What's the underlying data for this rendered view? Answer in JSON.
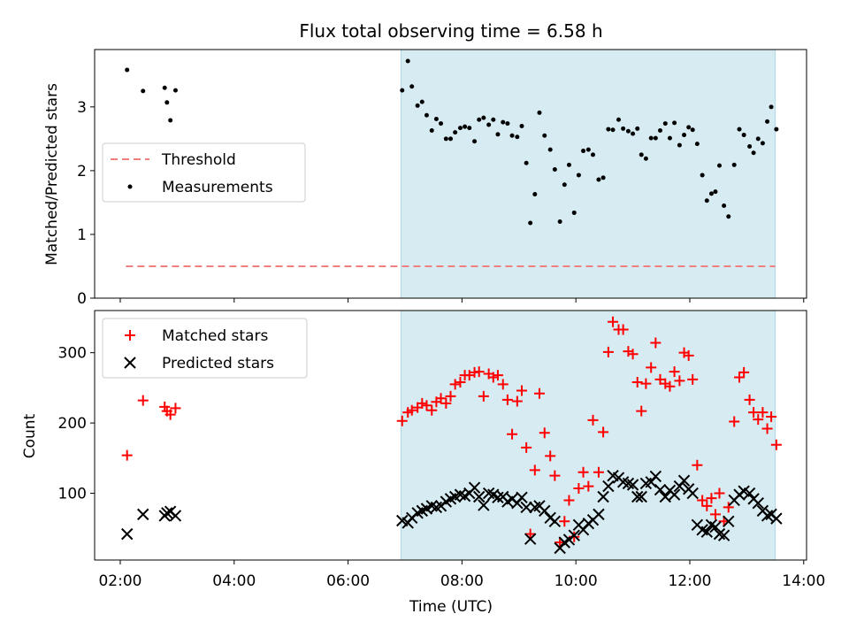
{
  "title": "Flux total observing time = 6.58 h",
  "colors": {
    "shade": "#add8e6",
    "threshold": "#f08080",
    "measurement": "#000000",
    "matched": "#ff0000",
    "predicted": "#000000"
  },
  "chart_data": [
    {
      "type": "scatter",
      "ylabel": "Matched/Predicted stars",
      "xlabel": "",
      "xlim_hours": [
        1.55,
        14.05
      ],
      "ylim": [
        0,
        3.9
      ],
      "yticks": [
        {
          "value": 0,
          "label": "0"
        },
        {
          "value": 1,
          "label": "1"
        },
        {
          "value": 2,
          "label": "2"
        },
        {
          "value": 3,
          "label": "3"
        }
      ],
      "shaded_span_hours": [
        6.93,
        13.5
      ],
      "threshold": {
        "name": "Threshold",
        "value": 0.5,
        "x_range_hours": [
          2.1,
          13.5
        ]
      },
      "legend_location": "center-left",
      "series": [
        {
          "name": "Measurements",
          "marker": "dot",
          "points": [
            [
              2.12,
              3.58
            ],
            [
              2.4,
              3.25
            ],
            [
              2.78,
              3.3
            ],
            [
              2.82,
              3.07
            ],
            [
              2.88,
              2.79
            ],
            [
              2.97,
              3.26
            ],
            [
              6.95,
              3.26
            ],
            [
              7.05,
              3.72
            ],
            [
              7.12,
              3.32
            ],
            [
              7.22,
              3.02
            ],
            [
              7.3,
              3.08
            ],
            [
              7.38,
              2.87
            ],
            [
              7.47,
              2.63
            ],
            [
              7.55,
              2.81
            ],
            [
              7.63,
              2.74
            ],
            [
              7.72,
              2.5
            ],
            [
              7.8,
              2.5
            ],
            [
              7.88,
              2.6
            ],
            [
              7.97,
              2.67
            ],
            [
              8.05,
              2.69
            ],
            [
              8.13,
              2.67
            ],
            [
              8.22,
              2.46
            ],
            [
              8.3,
              2.8
            ],
            [
              8.38,
              2.83
            ],
            [
              8.47,
              2.72
            ],
            [
              8.55,
              2.8
            ],
            [
              8.63,
              2.57
            ],
            [
              8.72,
              2.76
            ],
            [
              8.8,
              2.74
            ],
            [
              8.88,
              2.55
            ],
            [
              8.97,
              2.53
            ],
            [
              9.05,
              2.7
            ],
            [
              9.13,
              2.12
            ],
            [
              9.2,
              1.18
            ],
            [
              9.28,
              1.63
            ],
            [
              9.36,
              2.91
            ],
            [
              9.45,
              2.55
            ],
            [
              9.55,
              2.33
            ],
            [
              9.63,
              2.02
            ],
            [
              9.72,
              1.2
            ],
            [
              9.8,
              1.78
            ],
            [
              9.88,
              2.09
            ],
            [
              9.97,
              1.34
            ],
            [
              10.05,
              1.93
            ],
            [
              10.13,
              2.31
            ],
            [
              10.22,
              2.33
            ],
            [
              10.3,
              2.25
            ],
            [
              10.4,
              1.86
            ],
            [
              10.48,
              1.89
            ],
            [
              10.57,
              2.65
            ],
            [
              10.65,
              2.64
            ],
            [
              10.75,
              2.8
            ],
            [
              10.83,
              2.66
            ],
            [
              10.92,
              2.62
            ],
            [
              11.0,
              2.58
            ],
            [
              11.08,
              2.66
            ],
            [
              11.15,
              2.25
            ],
            [
              11.23,
              2.19
            ],
            [
              11.32,
              2.51
            ],
            [
              11.4,
              2.51
            ],
            [
              11.48,
              2.63
            ],
            [
              11.57,
              2.74
            ],
            [
              11.65,
              2.51
            ],
            [
              11.73,
              2.75
            ],
            [
              11.82,
              2.4
            ],
            [
              11.9,
              2.56
            ],
            [
              11.98,
              2.68
            ],
            [
              12.05,
              2.64
            ],
            [
              12.13,
              2.42
            ],
            [
              12.22,
              1.93
            ],
            [
              12.3,
              1.53
            ],
            [
              12.38,
              1.64
            ],
            [
              12.45,
              1.67
            ],
            [
              12.52,
              2.08
            ],
            [
              12.6,
              1.45
            ],
            [
              12.68,
              1.28
            ],
            [
              12.78,
              2.09
            ],
            [
              12.87,
              2.65
            ],
            [
              12.95,
              2.56
            ],
            [
              13.05,
              2.38
            ],
            [
              13.12,
              2.28
            ],
            [
              13.2,
              2.5
            ],
            [
              13.28,
              2.43
            ],
            [
              13.36,
              2.77
            ],
            [
              13.43,
              3.0
            ],
            [
              13.52,
              2.65
            ]
          ]
        }
      ]
    },
    {
      "type": "scatter",
      "ylabel": "Count",
      "xlabel": "Time (UTC)",
      "xlim_hours": [
        1.55,
        14.05
      ],
      "ylim": [
        5,
        360
      ],
      "yticks": [
        {
          "value": 100,
          "label": "100"
        },
        {
          "value": 200,
          "label": "200"
        },
        {
          "value": 300,
          "label": "300"
        }
      ],
      "xticks": [
        {
          "value": 2,
          "label": "02:00"
        },
        {
          "value": 4,
          "label": "04:00"
        },
        {
          "value": 6,
          "label": "06:00"
        },
        {
          "value": 8,
          "label": "08:00"
        },
        {
          "value": 10,
          "label": "10:00"
        },
        {
          "value": 12,
          "label": "12:00"
        },
        {
          "value": 14,
          "label": "14:00"
        }
      ],
      "shaded_span_hours": [
        6.93,
        13.5
      ],
      "legend_location": "top-left",
      "series": [
        {
          "name": "Matched stars",
          "marker": "plus",
          "points": [
            [
              2.12,
              154
            ],
            [
              2.4,
              232
            ],
            [
              2.78,
              223
            ],
            [
              2.82,
              217
            ],
            [
              2.88,
              212
            ],
            [
              2.97,
              221
            ],
            [
              6.95,
              203
            ],
            [
              7.05,
              215
            ],
            [
              7.12,
              218
            ],
            [
              7.22,
              222
            ],
            [
              7.3,
              228
            ],
            [
              7.38,
              225
            ],
            [
              7.47,
              218
            ],
            [
              7.55,
              230
            ],
            [
              7.63,
              235
            ],
            [
              7.72,
              228
            ],
            [
              7.8,
              238
            ],
            [
              7.88,
              255
            ],
            [
              7.97,
              258
            ],
            [
              8.05,
              268
            ],
            [
              8.13,
              268
            ],
            [
              8.22,
              272
            ],
            [
              8.3,
              273
            ],
            [
              8.38,
              238
            ],
            [
              8.47,
              270
            ],
            [
              8.55,
              265
            ],
            [
              8.63,
              268
            ],
            [
              8.72,
              255
            ],
            [
              8.8,
              233
            ],
            [
              8.88,
              184
            ],
            [
              8.97,
              231
            ],
            [
              9.05,
              246
            ],
            [
              9.13,
              165
            ],
            [
              9.2,
              42
            ],
            [
              9.28,
              133
            ],
            [
              9.36,
              242
            ],
            [
              9.45,
              186
            ],
            [
              9.55,
              153
            ],
            [
              9.63,
              125
            ],
            [
              9.72,
              30
            ],
            [
              9.8,
              60
            ],
            [
              9.88,
              90
            ],
            [
              9.97,
              38
            ],
            [
              10.05,
              107
            ],
            [
              10.13,
              130
            ],
            [
              10.22,
              110
            ],
            [
              10.3,
              204
            ],
            [
              10.4,
              130
            ],
            [
              10.48,
              187
            ],
            [
              10.57,
              301
            ],
            [
              10.65,
              344
            ],
            [
              10.75,
              333
            ],
            [
              10.83,
              333
            ],
            [
              10.92,
              302
            ],
            [
              11.0,
              298
            ],
            [
              11.08,
              258
            ],
            [
              11.15,
              217
            ],
            [
              11.23,
              256
            ],
            [
              11.32,
              279
            ],
            [
              11.4,
              314
            ],
            [
              11.48,
              262
            ],
            [
              11.57,
              256
            ],
            [
              11.65,
              252
            ],
            [
              11.73,
              273
            ],
            [
              11.82,
              260
            ],
            [
              11.9,
              300
            ],
            [
              11.98,
              296
            ],
            [
              12.05,
              262
            ],
            [
              12.13,
              140
            ],
            [
              12.22,
              90
            ],
            [
              12.3,
              82
            ],
            [
              12.38,
              93
            ],
            [
              12.45,
              70
            ],
            [
              12.52,
              100
            ],
            [
              12.6,
              60
            ],
            [
              12.68,
              80
            ],
            [
              12.78,
              202
            ],
            [
              12.87,
              265
            ],
            [
              12.95,
              272
            ],
            [
              13.05,
              233
            ],
            [
              13.12,
              215
            ],
            [
              13.2,
              205
            ],
            [
              13.28,
              215
            ],
            [
              13.36,
              192
            ],
            [
              13.43,
              209
            ],
            [
              13.52,
              169
            ]
          ]
        },
        {
          "name": "Predicted stars",
          "marker": "x",
          "points": [
            [
              2.12,
              42
            ],
            [
              2.4,
              70
            ],
            [
              2.78,
              68
            ],
            [
              2.82,
              72
            ],
            [
              2.88,
              74
            ],
            [
              2.97,
              68
            ],
            [
              6.95,
              61
            ],
            [
              7.05,
              58
            ],
            [
              7.12,
              65
            ],
            [
              7.22,
              72
            ],
            [
              7.3,
              75
            ],
            [
              7.38,
              78
            ],
            [
              7.47,
              82
            ],
            [
              7.55,
              80
            ],
            [
              7.63,
              82
            ],
            [
              7.72,
              88
            ],
            [
              7.8,
              92
            ],
            [
              7.88,
              95
            ],
            [
              7.97,
              98
            ],
            [
              8.05,
              96
            ],
            [
              8.13,
              100
            ],
            [
              8.22,
              108
            ],
            [
              8.3,
              95
            ],
            [
              8.38,
              83
            ],
            [
              8.47,
              100
            ],
            [
              8.55,
              98
            ],
            [
              8.63,
              94
            ],
            [
              8.72,
              95
            ],
            [
              8.8,
              88
            ],
            [
              8.88,
              92
            ],
            [
              8.97,
              86
            ],
            [
              9.05,
              94
            ],
            [
              9.13,
              80
            ],
            [
              9.2,
              35
            ],
            [
              9.28,
              80
            ],
            [
              9.36,
              82
            ],
            [
              9.45,
              75
            ],
            [
              9.55,
              65
            ],
            [
              9.63,
              60
            ],
            [
              9.72,
              22
            ],
            [
              9.8,
              30
            ],
            [
              9.88,
              34
            ],
            [
              9.97,
              40
            ],
            [
              10.05,
              55
            ],
            [
              10.13,
              48
            ],
            [
              10.22,
              57
            ],
            [
              10.3,
              62
            ],
            [
              10.4,
              70
            ],
            [
              10.48,
              95
            ],
            [
              10.57,
              110
            ],
            [
              10.65,
              125
            ],
            [
              10.75,
              122
            ],
            [
              10.83,
              116
            ],
            [
              10.92,
              114
            ],
            [
              11.0,
              112
            ],
            [
              11.08,
              95
            ],
            [
              11.15,
              95
            ],
            [
              11.23,
              114
            ],
            [
              11.32,
              116
            ],
            [
              11.4,
              124
            ],
            [
              11.48,
              105
            ],
            [
              11.57,
              95
            ],
            [
              11.65,
              104
            ],
            [
              11.73,
              98
            ],
            [
              11.82,
              110
            ],
            [
              11.9,
              118
            ],
            [
              11.98,
              106
            ],
            [
              12.05,
              100
            ],
            [
              12.13,
              55
            ],
            [
              12.22,
              48
            ],
            [
              12.3,
              45
            ],
            [
              12.38,
              55
            ],
            [
              12.45,
              52
            ],
            [
              12.52,
              42
            ],
            [
              12.6,
              40
            ],
            [
              12.68,
              60
            ],
            [
              12.78,
              90
            ],
            [
              12.87,
              98
            ],
            [
              12.95,
              103
            ],
            [
              13.05,
              100
            ],
            [
              13.12,
              92
            ],
            [
              13.2,
              86
            ],
            [
              13.28,
              75
            ],
            [
              13.36,
              68
            ],
            [
              13.43,
              70
            ],
            [
              13.52,
              64
            ]
          ]
        }
      ]
    }
  ]
}
